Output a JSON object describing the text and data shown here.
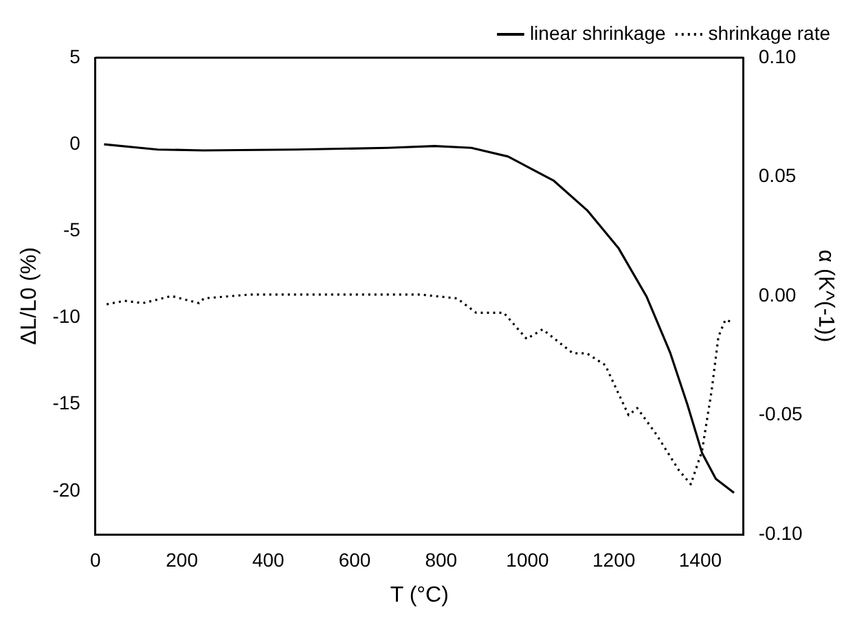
{
  "chart_data": {
    "type": "line",
    "xlabel": "T (°C)",
    "ylabel": "ΔL/L0 (%)",
    "y2label": "α (K^(-1))",
    "xlim": [
      0,
      1500
    ],
    "xticks": [
      0,
      200,
      400,
      600,
      800,
      1000,
      1200,
      1400
    ],
    "ylim": [
      -22.5,
      5
    ],
    "yticks": [
      5,
      0,
      -5,
      -10,
      -15,
      -20
    ],
    "y2lim": [
      -0.1,
      0.1
    ],
    "y2ticks": [
      {
        "value": 0.1,
        "label": "0.10"
      },
      {
        "value": 0.05,
        "label": "0.05"
      },
      {
        "value": 0,
        "label": "0.00"
      },
      {
        "value": -0.05,
        "label": "-0.05"
      },
      {
        "value": -0.1,
        "label": "-0.10"
      }
    ],
    "legend": "top right",
    "marker": "none",
    "grid": false,
    "series": [
      {
        "name": "linear shrinkage",
        "color": "#000000",
        "line_style": "solid",
        "x": [
          20,
          144,
          250,
          465,
          677,
          785,
          870,
          955,
          1061,
          1138,
          1211,
          1276,
          1330,
          1370,
          1404,
          1436,
          1478
        ],
        "values": [
          0,
          -0.3,
          -0.35,
          -0.3,
          -0.2,
          -0.1,
          -0.2,
          -0.7,
          -2.1,
          -3.8,
          -6,
          -8.8,
          -12,
          -15,
          -17.8,
          -19.3,
          -20.1
        ]
      },
      {
        "name": "shrinkage rate",
        "color": "#000000",
        "line_style": "dotted",
        "axis": "y2",
        "x": [
          26,
          67,
          110,
          176,
          240,
          251,
          356,
          570,
          753,
          837,
          881,
          945,
          998,
          1035,
          1105,
          1137,
          1180,
          1234,
          1254,
          1298,
          1350,
          1378,
          1404,
          1426,
          1442,
          1458,
          1474
        ],
        "values": [
          -0.0035,
          -0.002,
          -0.003,
          0.0,
          -0.003,
          -0.001,
          0.0006,
          0.0006,
          0.0006,
          -0.001,
          -0.007,
          -0.007,
          -0.018,
          -0.014,
          -0.024,
          -0.024,
          -0.029,
          -0.05,
          -0.047,
          -0.058,
          -0.073,
          -0.079,
          -0.065,
          -0.04,
          -0.017,
          -0.01,
          -0.011
        ]
      }
    ]
  }
}
